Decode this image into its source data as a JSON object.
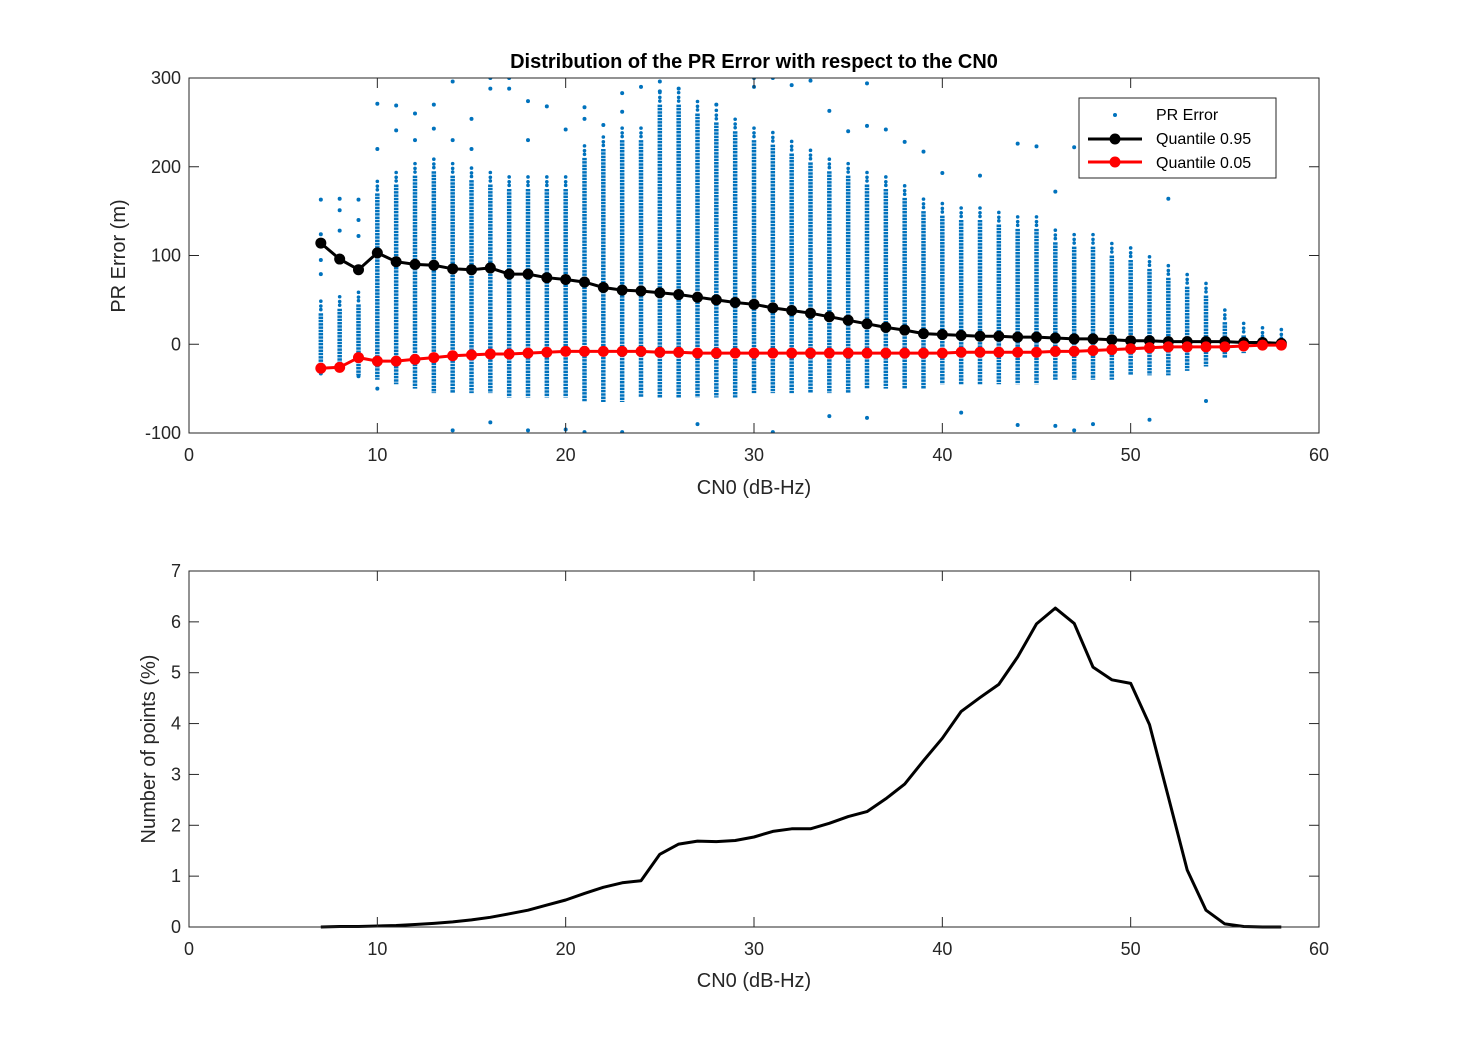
{
  "chart_data": [
    {
      "type": "scatter",
      "title": "Distribution of the PR Error with respect to the CN0",
      "xlabel": "CN0 (dB-Hz)",
      "ylabel": "PR Error (m)",
      "xlim": [
        0,
        60
      ],
      "ylim": [
        -100,
        300
      ],
      "xticks": [
        "0",
        "10",
        "20",
        "30",
        "40",
        "50",
        "60"
      ],
      "yticks": [
        "-100",
        "0",
        "100",
        "200",
        "300"
      ],
      "legend_position": "top-right",
      "colors": {
        "scatter": "#0072BD",
        "q95": "#000000",
        "q05": "#ff0000"
      },
      "x": [
        7,
        8,
        9,
        10,
        11,
        12,
        13,
        14,
        15,
        16,
        17,
        18,
        19,
        20,
        21,
        22,
        23,
        24,
        25,
        26,
        27,
        28,
        29,
        30,
        31,
        32,
        33,
        34,
        35,
        36,
        37,
        38,
        39,
        40,
        41,
        42,
        43,
        44,
        45,
        46,
        47,
        48,
        49,
        50,
        51,
        52,
        53,
        54,
        55,
        56,
        57,
        58
      ],
      "scatter_band": {
        "upper": [
          35,
          40,
          45,
          170,
          180,
          190,
          195,
          190,
          185,
          180,
          175,
          175,
          175,
          175,
          210,
          220,
          230,
          230,
          270,
          270,
          260,
          250,
          240,
          230,
          225,
          215,
          205,
          195,
          190,
          180,
          175,
          165,
          150,
          145,
          140,
          140,
          135,
          130,
          130,
          115,
          110,
          110,
          100,
          95,
          85,
          75,
          65,
          55,
          25,
          10,
          5,
          3
        ],
        "lower": [
          -30,
          -30,
          -35,
          -40,
          -45,
          -50,
          -55,
          -55,
          -55,
          -55,
          -60,
          -60,
          -60,
          -60,
          -65,
          -65,
          -65,
          -60,
          -60,
          -60,
          -60,
          -60,
          -60,
          -55,
          -55,
          -55,
          -55,
          -55,
          -55,
          -50,
          -50,
          -50,
          -50,
          -45,
          -45,
          -45,
          -45,
          -45,
          -45,
          -40,
          -40,
          -40,
          -40,
          -35,
          -35,
          -35,
          -30,
          -25,
          -15,
          -10,
          -5,
          -3
        ]
      },
      "series": [
        {
          "name": "PR Error",
          "marker": "dot",
          "outliers": [
            [
              7,
              163
            ],
            [
              7,
              124
            ],
            [
              7,
              95
            ],
            [
              7,
              79
            ],
            [
              8,
              164
            ],
            [
              8,
              151
            ],
            [
              8,
              128
            ],
            [
              9,
              163
            ],
            [
              9,
              140
            ],
            [
              9,
              122
            ],
            [
              10,
              271
            ],
            [
              10,
              220
            ],
            [
              11,
              269
            ],
            [
              11,
              241
            ],
            [
              12,
              260
            ],
            [
              12,
              230
            ],
            [
              13,
              270
            ],
            [
              13,
              243
            ],
            [
              14,
              296
            ],
            [
              14,
              230
            ],
            [
              15,
              254
            ],
            [
              15,
              220
            ],
            [
              16,
              300
            ],
            [
              16,
              288
            ],
            [
              17,
              300
            ],
            [
              17,
              288
            ],
            [
              18,
              274
            ],
            [
              18,
              230
            ],
            [
              19,
              268
            ],
            [
              20,
              242
            ],
            [
              21,
              254
            ],
            [
              21,
              267
            ],
            [
              22,
              247
            ],
            [
              23,
              283
            ],
            [
              23,
              262
            ],
            [
              24,
              290
            ],
            [
              25,
              296
            ],
            [
              25,
              285
            ],
            [
              26,
              288
            ],
            [
              28,
              270
            ],
            [
              30,
              300
            ],
            [
              30,
              290
            ],
            [
              31,
              300
            ],
            [
              32,
              292
            ],
            [
              33,
              297
            ],
            [
              34,
              263
            ],
            [
              35,
              240
            ],
            [
              36,
              294
            ],
            [
              36,
              246
            ],
            [
              37,
              242
            ],
            [
              38,
              228
            ],
            [
              39,
              217
            ],
            [
              40,
              193
            ],
            [
              42,
              190
            ],
            [
              44,
              226
            ],
            [
              45,
              223
            ],
            [
              46,
              172
            ],
            [
              47,
              222
            ],
            [
              48,
              210
            ],
            [
              52,
              164
            ],
            [
              7,
              -33
            ],
            [
              9,
              -36
            ],
            [
              10,
              -50
            ],
            [
              14,
              -97
            ],
            [
              16,
              -88
            ],
            [
              18,
              -97
            ],
            [
              20,
              -96
            ],
            [
              21,
              -99
            ],
            [
              23,
              -99
            ],
            [
              27,
              -90
            ],
            [
              31,
              -99
            ],
            [
              34,
              -81
            ],
            [
              36,
              -83
            ],
            [
              41,
              -77
            ],
            [
              44,
              -91
            ],
            [
              46,
              -92
            ],
            [
              47,
              -97
            ],
            [
              48,
              -90
            ],
            [
              51,
              -85
            ],
            [
              54,
              -64
            ]
          ]
        },
        {
          "name": "Quantile 0.95",
          "marker": "circle",
          "values": [
            114,
            96,
            84,
            103,
            93,
            90,
            89,
            85,
            84,
            86,
            79,
            79,
            75,
            73,
            70,
            64,
            61,
            60,
            58,
            56,
            53,
            50,
            47,
            45,
            41,
            38,
            35,
            31,
            27,
            23,
            19,
            16,
            12,
            11,
            10,
            9,
            9,
            8,
            8,
            7,
            6,
            6,
            5,
            4,
            4,
            3,
            3,
            3,
            3,
            2,
            2,
            1
          ]
        },
        {
          "name": "Quantile 0.05",
          "marker": "circle",
          "values": [
            -27,
            -26,
            -15,
            -19,
            -19,
            -17,
            -15,
            -13,
            -12,
            -11,
            -11,
            -10,
            -9,
            -8,
            -8,
            -8,
            -8,
            -8,
            -9,
            -9,
            -10,
            -10,
            -10,
            -10,
            -10,
            -10,
            -10,
            -10,
            -10,
            -10,
            -10,
            -10,
            -10,
            -10,
            -9,
            -9,
            -9,
            -9,
            -9,
            -8,
            -8,
            -7,
            -6,
            -5,
            -4,
            -3,
            -3,
            -3,
            -3,
            -2,
            -1,
            -1
          ]
        }
      ]
    },
    {
      "type": "line",
      "title": "",
      "xlabel": "CN0 (dB-Hz)",
      "ylabel": "Number of points (%)",
      "xlim": [
        0,
        60
      ],
      "ylim": [
        0,
        7
      ],
      "xticks": [
        "0",
        "10",
        "20",
        "30",
        "40",
        "50",
        "60"
      ],
      "yticks": [
        "0",
        "1",
        "2",
        "3",
        "4",
        "5",
        "6",
        "7"
      ],
      "x": [
        7,
        8,
        9,
        10,
        11,
        12,
        13,
        14,
        15,
        16,
        17,
        18,
        19,
        20,
        21,
        22,
        23,
        24,
        25,
        26,
        27,
        28,
        29,
        30,
        31,
        32,
        33,
        34,
        35,
        36,
        37,
        38,
        39,
        40,
        41,
        42,
        43,
        44,
        45,
        46,
        47,
        48,
        49,
        50,
        51,
        52,
        53,
        54,
        55,
        56,
        57,
        58
      ],
      "series": [
        {
          "values": [
            0.0,
            0.01,
            0.01,
            0.02,
            0.03,
            0.05,
            0.07,
            0.1,
            0.14,
            0.19,
            0.26,
            0.33,
            0.43,
            0.53,
            0.66,
            0.78,
            0.87,
            0.91,
            1.43,
            1.63,
            1.69,
            1.68,
            1.7,
            1.77,
            1.88,
            1.93,
            1.93,
            2.04,
            2.17,
            2.27,
            2.52,
            2.81,
            3.27,
            3.71,
            4.24,
            4.51,
            4.77,
            5.31,
            5.96,
            6.27,
            5.97,
            5.11,
            4.86,
            4.79,
            3.98,
            2.56,
            1.12,
            0.33,
            0.06,
            0.01,
            0.0,
            0.0
          ]
        }
      ]
    }
  ]
}
